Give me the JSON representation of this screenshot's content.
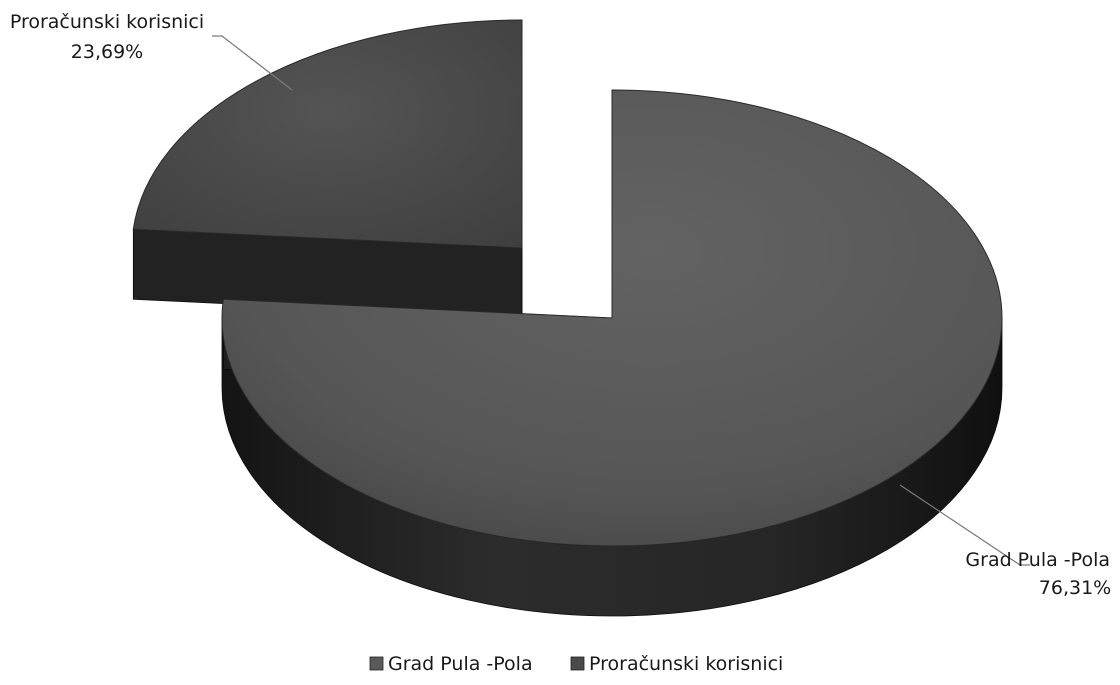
{
  "chart_data": {
    "type": "pie",
    "style": "3d-exploded",
    "slices": [
      {
        "name": "Grad Pula -Pola",
        "value": 76.31,
        "label_value": "76,31%",
        "color": "#5a5a5a"
      },
      {
        "name": "Proračunski korisnici",
        "value": 23.69,
        "label_value": "23,69%",
        "color": "#4a4a4a"
      }
    ],
    "legend": {
      "position": "bottom",
      "entries": [
        "Grad Pula -Pola",
        "Proračunski korisnici"
      ]
    }
  }
}
